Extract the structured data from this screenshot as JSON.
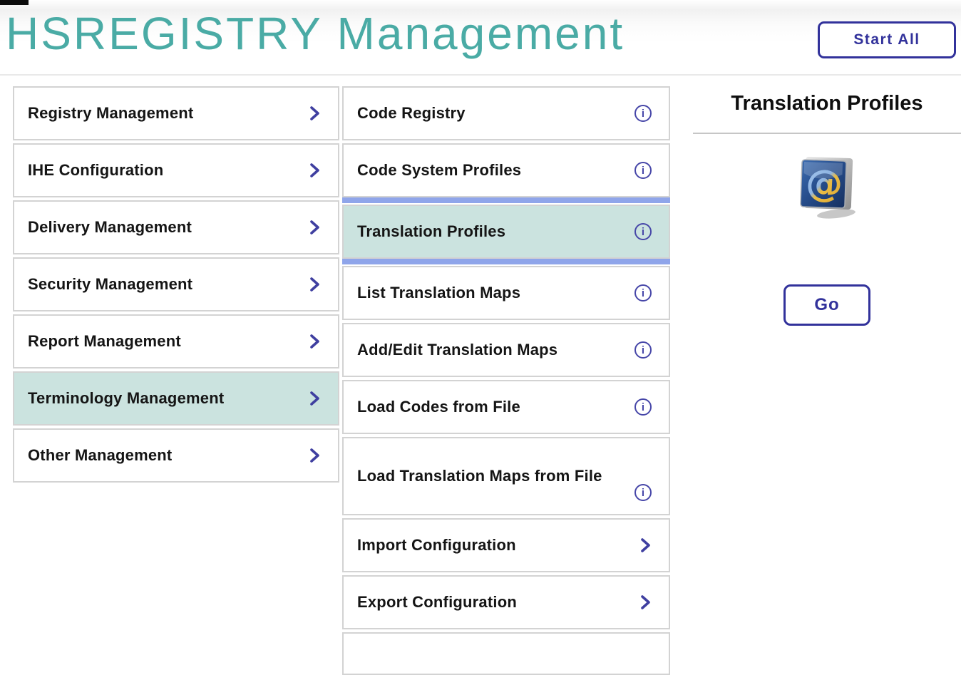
{
  "header": {
    "title": "HSREGISTRY Management",
    "start_all_label": "Start All"
  },
  "left_menu": {
    "items": [
      {
        "label": "Registry Management",
        "trailing": "chevron",
        "active": false
      },
      {
        "label": "IHE Configuration",
        "trailing": "chevron",
        "active": false
      },
      {
        "label": "Delivery Management",
        "trailing": "chevron",
        "active": false
      },
      {
        "label": "Security Management",
        "trailing": "chevron",
        "active": false
      },
      {
        "label": "Report Management",
        "trailing": "chevron",
        "active": false
      },
      {
        "label": "Terminology Management",
        "trailing": "chevron",
        "active": true
      },
      {
        "label": "Other Management",
        "trailing": "chevron",
        "active": false
      }
    ]
  },
  "middle_menu": {
    "items": [
      {
        "label": "Code Registry",
        "trailing": "info",
        "active": false
      },
      {
        "label": "Code System Profiles",
        "trailing": "info",
        "active": false
      },
      {
        "label": "Translation Profiles",
        "trailing": "info",
        "active": true
      },
      {
        "label": "List Translation Maps",
        "trailing": "info",
        "active": false
      },
      {
        "label": "Add/Edit Translation Maps",
        "trailing": "info",
        "active": false
      },
      {
        "label": "Load Codes from File",
        "trailing": "info",
        "active": false
      },
      {
        "label": "Load Translation Maps from File",
        "trailing": "info",
        "active": false,
        "tall": true
      },
      {
        "label": "Import Configuration",
        "trailing": "chevron",
        "active": false
      },
      {
        "label": "Export Configuration",
        "trailing": "chevron",
        "active": false
      }
    ],
    "has_partial_last_card": true
  },
  "right_panel": {
    "title": "Translation Profiles",
    "go_label": "Go",
    "icon": "at-symbol-icon"
  },
  "icons": {
    "info_glyph": "i"
  },
  "colors": {
    "title_teal": "#4aaba5",
    "highlight_teal": "#cbe3df",
    "indigo": "#32329b",
    "active_bar_blue": "#8fa5ea",
    "card_border": "#d3d3d3"
  }
}
